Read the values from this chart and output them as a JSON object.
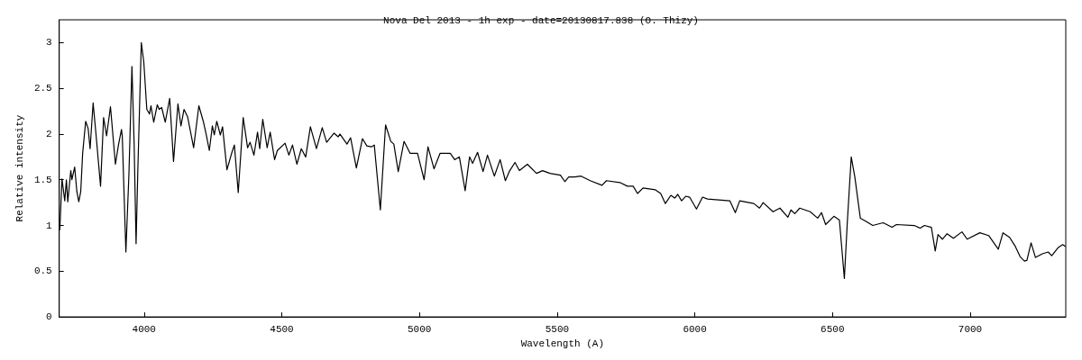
{
  "chart_data": {
    "type": "line",
    "title": "Nova Del 2013 - 1h exp - date=20130817.838 (O. Thizy)",
    "xlabel": "Wavelength (A)",
    "ylabel": "Relative intensity",
    "xlim": [
      3692,
      7347
    ],
    "xticks": [
      4000,
      4500,
      5000,
      5500,
      6000,
      6500,
      7000
    ],
    "ylim": [
      0,
      3.25
    ],
    "yticks": [
      0,
      0.5,
      1,
      1.5,
      2,
      2.5,
      3
    ],
    "grid": false,
    "marker": "none",
    "line_style": "solid",
    "series": [
      {
        "color": "#000000",
        "x": [
          3694,
          3702,
          3712,
          3718,
          3723,
          3734,
          3738,
          3748,
          3756,
          3763,
          3770,
          3777,
          3788,
          3797,
          3804,
          3815,
          3826,
          3842,
          3853,
          3864,
          3878,
          3896,
          3907,
          3918,
          3921,
          3934,
          3945,
          3956,
          3964,
          3971,
          3977,
          3990,
          3999,
          4010,
          4020,
          4025,
          4035,
          4048,
          4055,
          4064,
          4077,
          4093,
          4107,
          4123,
          4134,
          4145,
          4158,
          4180,
          4199,
          4215,
          4226,
          4237,
          4248,
          4255,
          4264,
          4277,
          4285,
          4301,
          4318,
          4328,
          4342,
          4360,
          4376,
          4385,
          4399,
          4412,
          4420,
          4431,
          4447,
          4458,
          4474,
          4484,
          4512,
          4526,
          4539,
          4555,
          4571,
          4587,
          4604,
          4626,
          4647,
          4663,
          4690,
          4705,
          4711,
          4737,
          4750,
          4771,
          4793,
          4809,
          4825,
          4836,
          4858,
          4877,
          4896,
          4907,
          4923,
          4944,
          4966,
          4993,
          5017,
          5031,
          5053,
          5075,
          5112,
          5128,
          5145,
          5166,
          5182,
          5193,
          5211,
          5231,
          5247,
          5272,
          5293,
          5312,
          5328,
          5347,
          5363,
          5392,
          5425,
          5447,
          5474,
          5512,
          5528,
          5542,
          5563,
          5587,
          5620,
          5663,
          5679,
          5728,
          5755,
          5776,
          5792,
          5812,
          5857,
          5876,
          5893,
          5913,
          5927,
          5938,
          5952,
          5967,
          5981,
          6006,
          6028,
          6046,
          6127,
          6147,
          6163,
          6214,
          6235,
          6248,
          6284,
          6309,
          6338,
          6349,
          6363,
          6381,
          6419,
          6446,
          6460,
          6475,
          6505,
          6525,
          6543,
          6554,
          6568,
          6581,
          6601,
          6619,
          6646,
          6684,
          6716,
          6732,
          6797,
          6818,
          6834,
          6859,
          6873,
          6883,
          6899,
          6916,
          6939,
          6970,
          6989,
          7035,
          7067,
          7102,
          7119,
          7143,
          7164,
          7181,
          7197,
          7206,
          7221,
          7237,
          7262,
          7283,
          7296,
          7320,
          7336,
          7346
        ],
        "values": [
          0.95,
          1.51,
          1.27,
          1.5,
          1.26,
          1.6,
          1.5,
          1.64,
          1.37,
          1.26,
          1.37,
          1.79,
          2.14,
          2.06,
          1.84,
          2.34,
          1.98,
          1.43,
          2.18,
          1.98,
          2.3,
          1.67,
          1.88,
          2.05,
          1.97,
          0.71,
          1.56,
          2.74,
          1.89,
          0.8,
          1.56,
          3.0,
          2.79,
          2.27,
          2.22,
          2.31,
          2.13,
          2.32,
          2.27,
          2.29,
          2.13,
          2.39,
          1.7,
          2.33,
          2.09,
          2.27,
          2.19,
          1.85,
          2.31,
          2.14,
          1.99,
          1.82,
          2.09,
          1.99,
          2.14,
          1.99,
          2.08,
          1.61,
          1.79,
          1.88,
          1.36,
          2.18,
          1.85,
          1.91,
          1.77,
          2.02,
          1.84,
          2.16,
          1.85,
          2.02,
          1.72,
          1.82,
          1.9,
          1.77,
          1.88,
          1.67,
          1.84,
          1.75,
          2.08,
          1.84,
          2.07,
          1.91,
          2.01,
          1.97,
          2.0,
          1.89,
          1.96,
          1.63,
          1.95,
          1.87,
          1.86,
          1.88,
          1.17,
          2.1,
          1.92,
          1.89,
          1.59,
          1.92,
          1.79,
          1.79,
          1.5,
          1.86,
          1.62,
          1.79,
          1.79,
          1.72,
          1.75,
          1.38,
          1.75,
          1.68,
          1.8,
          1.59,
          1.77,
          1.54,
          1.72,
          1.49,
          1.6,
          1.69,
          1.6,
          1.67,
          1.57,
          1.6,
          1.57,
          1.55,
          1.48,
          1.53,
          1.53,
          1.54,
          1.49,
          1.44,
          1.49,
          1.47,
          1.43,
          1.43,
          1.35,
          1.41,
          1.39,
          1.35,
          1.24,
          1.33,
          1.3,
          1.34,
          1.27,
          1.32,
          1.31,
          1.18,
          1.31,
          1.29,
          1.27,
          1.14,
          1.27,
          1.24,
          1.19,
          1.25,
          1.15,
          1.19,
          1.09,
          1.17,
          1.13,
          1.19,
          1.15,
          1.08,
          1.14,
          1.01,
          1.1,
          1.06,
          0.42,
          1.05,
          1.75,
          1.53,
          1.08,
          1.05,
          1.0,
          1.03,
          0.98,
          1.01,
          1.0,
          0.97,
          1.0,
          0.98,
          0.72,
          0.9,
          0.85,
          0.91,
          0.86,
          0.93,
          0.85,
          0.92,
          0.89,
          0.74,
          0.92,
          0.87,
          0.77,
          0.66,
          0.61,
          0.62,
          0.81,
          0.65,
          0.69,
          0.71,
          0.67,
          0.76,
          0.79,
          0.77
        ]
      }
    ]
  }
}
